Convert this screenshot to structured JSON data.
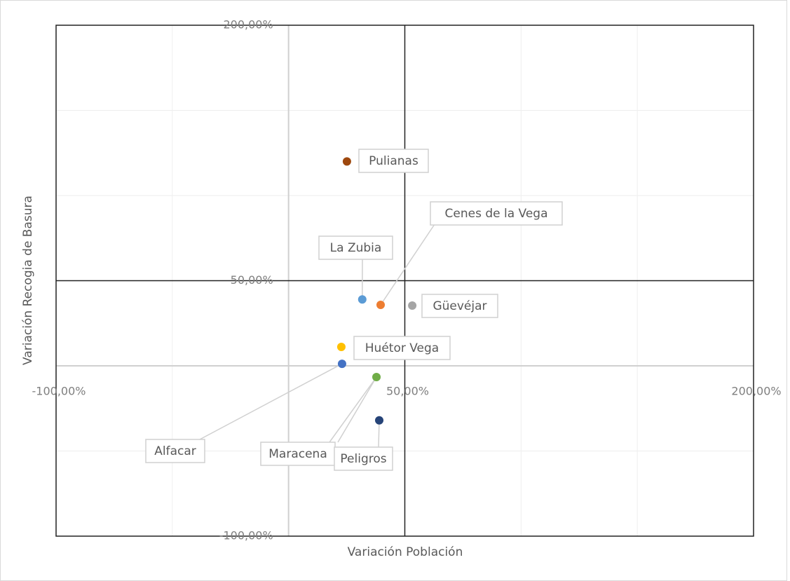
{
  "chart_data": {
    "type": "scatter",
    "x_label": "Variación Población",
    "y_label": "Variación Recogia de Basura",
    "xlim": [
      -100,
      200
    ],
    "ylim": [
      -100,
      200
    ],
    "xticks": [
      {
        "value": -100,
        "label": "-100,00%"
      },
      {
        "value": 50,
        "label": "50,00%"
      },
      {
        "value": 200,
        "label": "200,00%"
      }
    ],
    "yticks": [
      {
        "value": -100,
        "label": "-100,00%"
      },
      {
        "value": 50,
        "label": "50,00%"
      },
      {
        "value": 200,
        "label": "200,00%"
      }
    ],
    "xgrid": [
      -100,
      -50,
      0,
      50,
      100,
      150,
      200
    ],
    "ygrid": [
      -100,
      -50,
      0,
      50,
      100,
      150,
      200
    ],
    "axis_cross": {
      "x": 0,
      "y": 0
    },
    "quadrant_lines": {
      "x": 50,
      "y": 50
    },
    "series": [
      {
        "name": "Alfacar",
        "color": "#4472c4",
        "x": 23,
        "y": 1.2
      },
      {
        "name": "Cenes de la Vega",
        "color": "#ed7d31",
        "x": 39.6,
        "y": 35.8
      },
      {
        "name": "Güevéjar",
        "color": "#a5a5a5",
        "x": 53.2,
        "y": 35.4
      },
      {
        "name": "Huétor Vega",
        "color": "#ffc000",
        "x": 22.7,
        "y": 11.1
      },
      {
        "name": "La Zubia",
        "color": "#5b9bd5",
        "x": 31.7,
        "y": 39
      },
      {
        "name": "Maracena",
        "color": "#70ad47",
        "x": 37.8,
        "y": -6.6
      },
      {
        "name": "Peligros",
        "color": "#264478",
        "x": 39,
        "y": -32
      },
      {
        "name": "Pulianas",
        "color": "#9e480e",
        "x": 25.1,
        "y": 120
      }
    ]
  }
}
